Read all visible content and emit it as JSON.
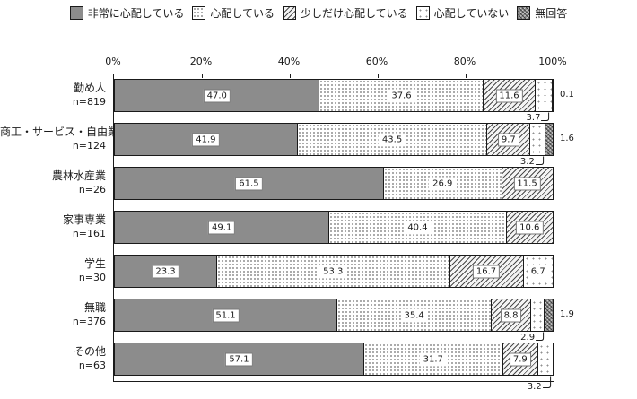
{
  "chart_data": {
    "type": "bar",
    "stacked": true,
    "orientation": "horizontal",
    "unit": "%",
    "axis": {
      "ticks": [
        "0%",
        "20%",
        "40%",
        "60%",
        "80%",
        "100%"
      ],
      "min": 0,
      "max": 100,
      "position": "top"
    },
    "legend": [
      {
        "label": "非常に心配している",
        "pattern": "solid-gray"
      },
      {
        "label": "心配している",
        "pattern": "fine-dots"
      },
      {
        "label": "少しだけ心配している",
        "pattern": "diagonal-hatch"
      },
      {
        "label": "心配していない",
        "pattern": "sparse-dots"
      },
      {
        "label": "無回答",
        "pattern": "dark-crosshatch"
      }
    ],
    "rows": [
      {
        "category": "勤め人",
        "n_label": "n=819",
        "segments": [
          {
            "value": 47.0,
            "label": "47.0",
            "label_pos": "inside"
          },
          {
            "value": 37.6,
            "label": "37.6",
            "label_pos": "inside"
          },
          {
            "value": 11.6,
            "label": "11.6",
            "label_pos": "inside"
          },
          {
            "value": 3.7,
            "label": "3.7",
            "label_pos": "below"
          },
          {
            "value": 0.1,
            "label": "0.1",
            "label_pos": "right"
          }
        ]
      },
      {
        "category": "商工・サービス・自由業",
        "n_label": "n=124",
        "segments": [
          {
            "value": 41.9,
            "label": "41.9",
            "label_pos": "inside"
          },
          {
            "value": 43.5,
            "label": "43.5",
            "label_pos": "inside"
          },
          {
            "value": 9.7,
            "label": "9.7",
            "label_pos": "inside"
          },
          {
            "value": 3.2,
            "label": "3.2",
            "label_pos": "below"
          },
          {
            "value": 1.6,
            "label": "1.6",
            "label_pos": "right"
          }
        ]
      },
      {
        "category": "農林水産業",
        "n_label": "n=26",
        "segments": [
          {
            "value": 61.5,
            "label": "61.5",
            "label_pos": "inside"
          },
          {
            "value": 26.9,
            "label": "26.9",
            "label_pos": "inside"
          },
          {
            "value": 11.5,
            "label": "11.5",
            "label_pos": "inside"
          }
        ]
      },
      {
        "category": "家事専業",
        "n_label": "n=161",
        "segments": [
          {
            "value": 49.1,
            "label": "49.1",
            "label_pos": "inside"
          },
          {
            "value": 40.4,
            "label": "40.4",
            "label_pos": "inside"
          },
          {
            "value": 10.6,
            "label": "10.6",
            "label_pos": "inside"
          }
        ]
      },
      {
        "category": "学生",
        "n_label": "n=30",
        "segments": [
          {
            "value": 23.3,
            "label": "23.3",
            "label_pos": "inside"
          },
          {
            "value": 53.3,
            "label": "53.3",
            "label_pos": "inside"
          },
          {
            "value": 16.7,
            "label": "16.7",
            "label_pos": "inside"
          },
          {
            "value": 6.7,
            "label": "6.7",
            "label_pos": "inside"
          }
        ]
      },
      {
        "category": "無職",
        "n_label": "n=376",
        "segments": [
          {
            "value": 51.1,
            "label": "51.1",
            "label_pos": "inside"
          },
          {
            "value": 35.4,
            "label": "35.4",
            "label_pos": "inside"
          },
          {
            "value": 8.8,
            "label": "8.8",
            "label_pos": "inside"
          },
          {
            "value": 2.9,
            "label": "2.9",
            "label_pos": "below"
          },
          {
            "value": 1.9,
            "label": "1.9",
            "label_pos": "right"
          }
        ]
      },
      {
        "category": "その他",
        "n_label": "n=63",
        "segments": [
          {
            "value": 57.1,
            "label": "57.1",
            "label_pos": "inside"
          },
          {
            "value": 31.7,
            "label": "31.7",
            "label_pos": "inside"
          },
          {
            "value": 7.9,
            "label": "7.9",
            "label_pos": "inside"
          },
          {
            "value": 3.2,
            "label": "3.2",
            "label_pos": "below"
          }
        ]
      }
    ],
    "colors": {
      "solid_gray": "#8c8c8c",
      "line": "#1a1a1a",
      "background": "#ffffff"
    }
  }
}
